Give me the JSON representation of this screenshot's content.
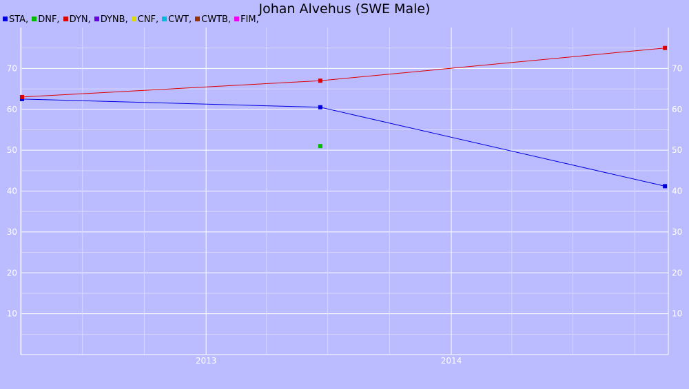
{
  "chart_data": {
    "type": "line",
    "title": "Johan Alvehus (SWE Male)",
    "xlabel": "",
    "ylabel": "",
    "xlim": [
      "2012-03-31",
      "2014-11-20"
    ],
    "ylim": [
      0,
      80
    ],
    "y_ticks": [
      10,
      20,
      30,
      40,
      50,
      60,
      70
    ],
    "x_ticks": [
      {
        "label": "2013",
        "date": "2013-01-01"
      },
      {
        "label": "2014",
        "date": "2014-01-01"
      }
    ],
    "grid": true,
    "legend_position": "top-left",
    "legend": [
      {
        "label": "STA,",
        "color": "#0000dd"
      },
      {
        "label": "DNF,",
        "color": "#00bb00"
      },
      {
        "label": "DYN,",
        "color": "#dd0000"
      },
      {
        "label": "DYNB,",
        "color": "#6600dd"
      },
      {
        "label": "CNF,",
        "color": "#dddd00"
      },
      {
        "label": "CWT,",
        "color": "#00bbdd"
      },
      {
        "label": "CWTB,",
        "color": "#993300"
      },
      {
        "label": "FIM,",
        "color": "#ee00ee"
      }
    ],
    "series": [
      {
        "name": "STA",
        "color": "#0000dd",
        "line": true,
        "points": [
          [
            "2012-04-02",
            62.5
          ],
          [
            "2013-06-20",
            60.5
          ],
          [
            "2014-11-15",
            41.2
          ]
        ]
      },
      {
        "name": "DNF",
        "color": "#00bb00",
        "line": false,
        "points": [
          [
            "2013-06-20",
            51
          ]
        ]
      },
      {
        "name": "DYN",
        "color": "#dd0000",
        "line": true,
        "points": [
          [
            "2012-04-02",
            63
          ],
          [
            "2013-06-20",
            67
          ],
          [
            "2014-11-15",
            75
          ]
        ]
      }
    ]
  }
}
